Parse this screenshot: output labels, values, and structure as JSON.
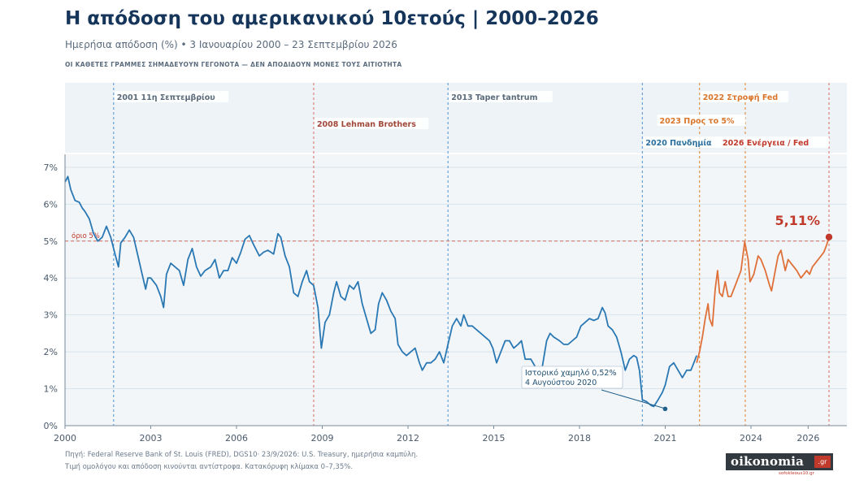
{
  "header": {
    "title": "Η απόδοση του αμερικανικού 10ετούς | 2000–2026",
    "subtitle": "Ημερήσια απόδοση (%) • 3 Ιανουαρίου 2000 – 23 Σεπτεμβρίου 2026",
    "note": "ΟΙ ΚΑΘΕΤΕΣ ΓΡΑΜΜΕΣ ΣΗΜΑΔΕΥΟΥΝ ΓΕΓΟΝΟΤΑ — ΔΕΝ ΑΠΟΔΙΔΟΥΝ ΜΟΝΕΣ ΤΟΥΣ ΑΙΤΙΟΤΗΤΑ"
  },
  "footer": {
    "source": "Πηγή: Federal Reserve Bank of St. Louis (FRED), DGS10· 23/9/2026: U.S. Treasury, ημερήσια καμπύλη.",
    "note": "Τιμή ομολόγου και απόδοση κινούνται αντίστροφα. Κατακόρυφη κλίμακα 0–7,35%."
  },
  "logo": {
    "name": "oikonomia",
    "tld": ".gr",
    "sub": "sofokleous10.gr"
  },
  "chart_data": {
    "type": "line",
    "xlim": [
      2000.0,
      2026.73
    ],
    "ylim": [
      0,
      7.35
    ],
    "x_ticks": [
      2000,
      2003,
      2006,
      2009,
      2012,
      2015,
      2018,
      2021,
      2024,
      2026
    ],
    "x_tick_labels": [
      "2000",
      "2003",
      "2006",
      "2009",
      "2012",
      "2015",
      "2018",
      "2021",
      "2024",
      "2026"
    ],
    "y_ticks": [
      0,
      1,
      2,
      3,
      4,
      5,
      6,
      7
    ],
    "y_tick_labels": [
      "0%",
      "1%",
      "2%",
      "3%",
      "4%",
      "5%",
      "6%",
      "7%"
    ],
    "grid": "horizontal",
    "threshold": {
      "value": 5,
      "label": "όριο 5%"
    },
    "colors": {
      "series_blue": "#2a78b3",
      "series_orange": "#e0703a",
      "accent_red": "#c0392b",
      "event_blue": "#5b9bd5",
      "event_red": "#d9776b",
      "event_orange": "#e08a3c"
    },
    "events": [
      {
        "x": 2001.7,
        "year": "2001",
        "label": "11η Σεπτεμβρίου",
        "row": 0,
        "color": "#5b9bd5",
        "text_color": "#5b6b7b"
      },
      {
        "x": 2008.7,
        "year": "2008",
        "label": "Lehman Brothers",
        "row": 2,
        "color": "#d9776b",
        "text_color": "#a0483a"
      },
      {
        "x": 2013.4,
        "year": "2013",
        "label": "Taper tantrum",
        "row": 0,
        "color": "#5b9bd5",
        "text_color": "#5b6b7b"
      },
      {
        "x": 2020.2,
        "year": "2020",
        "label": "Πανδημία",
        "row": 3,
        "color": "#5b9bd5",
        "text_color": "#2a6f9e"
      },
      {
        "x": 2022.2,
        "year": "2022",
        "label": "Στροφή Fed",
        "row": 0,
        "color": "#e08a3c",
        "text_color": "#d9762c"
      },
      {
        "x": 2023.8,
        "year": "2023",
        "label": "Προς το 5%",
        "row": 1,
        "color": "#e08a3c",
        "text_color": "#d9762c"
      },
      {
        "x": 2026.73,
        "year": "2026",
        "label": "Ενέργεια / Fed",
        "row": 3,
        "color": "#d9776b",
        "text_color": "#c0392b"
      }
    ],
    "low_annotation": {
      "x": 2020.6,
      "y": 0.52,
      "line1": "Ιστορικό χαμηλό 0,52%",
      "line2": "4 Αυγούστου 2020"
    },
    "last_value": {
      "x": 2026.73,
      "y": 5.11,
      "label": "5,11%"
    },
    "series": [
      {
        "name": "blue",
        "color": "#2a78b3",
        "points": [
          [
            2000.0,
            6.6
          ],
          [
            2000.1,
            6.75
          ],
          [
            2000.2,
            6.4
          ],
          [
            2000.35,
            6.1
          ],
          [
            2000.5,
            6.05
          ],
          [
            2000.6,
            5.9
          ],
          [
            2000.7,
            5.8
          ],
          [
            2000.85,
            5.6
          ],
          [
            2001.0,
            5.2
          ],
          [
            2001.15,
            5.0
          ],
          [
            2001.3,
            5.1
          ],
          [
            2001.45,
            5.4
          ],
          [
            2001.6,
            5.1
          ],
          [
            2001.75,
            4.65
          ],
          [
            2001.87,
            4.3
          ],
          [
            2001.95,
            4.95
          ],
          [
            2002.1,
            5.1
          ],
          [
            2002.25,
            5.3
          ],
          [
            2002.4,
            5.1
          ],
          [
            2002.55,
            4.6
          ],
          [
            2002.7,
            4.1
          ],
          [
            2002.82,
            3.7
          ],
          [
            2002.9,
            4.0
          ],
          [
            2003.0,
            4.0
          ],
          [
            2003.2,
            3.8
          ],
          [
            2003.35,
            3.5
          ],
          [
            2003.45,
            3.2
          ],
          [
            2003.55,
            4.1
          ],
          [
            2003.7,
            4.4
          ],
          [
            2003.85,
            4.3
          ],
          [
            2004.0,
            4.2
          ],
          [
            2004.15,
            3.8
          ],
          [
            2004.3,
            4.5
          ],
          [
            2004.45,
            4.8
          ],
          [
            2004.6,
            4.3
          ],
          [
            2004.75,
            4.05
          ],
          [
            2004.9,
            4.2
          ],
          [
            2005.1,
            4.3
          ],
          [
            2005.25,
            4.5
          ],
          [
            2005.4,
            4.0
          ],
          [
            2005.55,
            4.2
          ],
          [
            2005.7,
            4.2
          ],
          [
            2005.85,
            4.55
          ],
          [
            2006.0,
            4.4
          ],
          [
            2006.15,
            4.7
          ],
          [
            2006.3,
            5.05
          ],
          [
            2006.45,
            5.15
          ],
          [
            2006.6,
            4.9
          ],
          [
            2006.8,
            4.6
          ],
          [
            2006.95,
            4.7
          ],
          [
            2007.1,
            4.75
          ],
          [
            2007.3,
            4.65
          ],
          [
            2007.45,
            5.2
          ],
          [
            2007.55,
            5.1
          ],
          [
            2007.7,
            4.6
          ],
          [
            2007.85,
            4.3
          ],
          [
            2008.0,
            3.6
          ],
          [
            2008.15,
            3.5
          ],
          [
            2008.3,
            3.9
          ],
          [
            2008.45,
            4.2
          ],
          [
            2008.55,
            3.9
          ],
          [
            2008.7,
            3.8
          ],
          [
            2008.85,
            3.2
          ],
          [
            2008.97,
            2.1
          ],
          [
            2009.1,
            2.8
          ],
          [
            2009.25,
            3.0
          ],
          [
            2009.4,
            3.6
          ],
          [
            2009.5,
            3.9
          ],
          [
            2009.65,
            3.5
          ],
          [
            2009.8,
            3.4
          ],
          [
            2009.95,
            3.8
          ],
          [
            2010.1,
            3.7
          ],
          [
            2010.25,
            3.9
          ],
          [
            2010.4,
            3.3
          ],
          [
            2010.55,
            2.9
          ],
          [
            2010.7,
            2.5
          ],
          [
            2010.85,
            2.6
          ],
          [
            2010.97,
            3.3
          ],
          [
            2011.1,
            3.6
          ],
          [
            2011.25,
            3.4
          ],
          [
            2011.4,
            3.1
          ],
          [
            2011.55,
            2.9
          ],
          [
            2011.65,
            2.2
          ],
          [
            2011.8,
            2.0
          ],
          [
            2011.95,
            1.9
          ],
          [
            2012.1,
            2.0
          ],
          [
            2012.25,
            2.1
          ],
          [
            2012.4,
            1.7
          ],
          [
            2012.5,
            1.5
          ],
          [
            2012.65,
            1.7
          ],
          [
            2012.8,
            1.7
          ],
          [
            2012.95,
            1.8
          ],
          [
            2013.1,
            2.0
          ],
          [
            2013.25,
            1.7
          ],
          [
            2013.4,
            2.2
          ],
          [
            2013.55,
            2.7
          ],
          [
            2013.7,
            2.9
          ],
          [
            2013.85,
            2.7
          ],
          [
            2013.95,
            3.0
          ],
          [
            2014.1,
            2.7
          ],
          [
            2014.25,
            2.7
          ],
          [
            2014.4,
            2.6
          ],
          [
            2014.55,
            2.5
          ],
          [
            2014.7,
            2.4
          ],
          [
            2014.85,
            2.3
          ],
          [
            2014.97,
            2.1
          ],
          [
            2015.1,
            1.7
          ],
          [
            2015.25,
            2.0
          ],
          [
            2015.4,
            2.3
          ],
          [
            2015.55,
            2.3
          ],
          [
            2015.7,
            2.1
          ],
          [
            2015.85,
            2.2
          ],
          [
            2015.97,
            2.3
          ],
          [
            2016.1,
            1.8
          ],
          [
            2016.3,
            1.8
          ],
          [
            2016.45,
            1.6
          ],
          [
            2016.55,
            1.4
          ],
          [
            2016.7,
            1.6
          ],
          [
            2016.85,
            2.3
          ],
          [
            2016.97,
            2.5
          ],
          [
            2017.1,
            2.4
          ],
          [
            2017.3,
            2.3
          ],
          [
            2017.45,
            2.2
          ],
          [
            2017.6,
            2.2
          ],
          [
            2017.75,
            2.3
          ],
          [
            2017.9,
            2.4
          ],
          [
            2018.05,
            2.7
          ],
          [
            2018.2,
            2.8
          ],
          [
            2018.35,
            2.9
          ],
          [
            2018.5,
            2.85
          ],
          [
            2018.65,
            2.9
          ],
          [
            2018.8,
            3.2
          ],
          [
            2018.9,
            3.05
          ],
          [
            2019.0,
            2.7
          ],
          [
            2019.15,
            2.6
          ],
          [
            2019.3,
            2.4
          ],
          [
            2019.45,
            2.0
          ],
          [
            2019.6,
            1.5
          ],
          [
            2019.75,
            1.8
          ],
          [
            2019.9,
            1.9
          ],
          [
            2020.0,
            1.85
          ],
          [
            2020.1,
            1.5
          ],
          [
            2020.2,
            0.7
          ],
          [
            2020.35,
            0.65
          ],
          [
            2020.5,
            0.55
          ],
          [
            2020.6,
            0.52
          ],
          [
            2020.75,
            0.7
          ],
          [
            2020.9,
            0.9
          ],
          [
            2021.0,
            1.1
          ],
          [
            2021.15,
            1.6
          ],
          [
            2021.3,
            1.7
          ],
          [
            2021.45,
            1.5
          ],
          [
            2021.6,
            1.3
          ],
          [
            2021.75,
            1.5
          ],
          [
            2021.9,
            1.5
          ],
          [
            2022.0,
            1.7
          ],
          [
            2022.1,
            1.9
          ]
        ]
      },
      {
        "name": "orange",
        "color": "#e0703a",
        "points": [
          [
            2022.1,
            1.7
          ],
          [
            2022.2,
            2.0
          ],
          [
            2022.3,
            2.4
          ],
          [
            2022.4,
            2.9
          ],
          [
            2022.5,
            3.3
          ],
          [
            2022.55,
            2.9
          ],
          [
            2022.65,
            2.7
          ],
          [
            2022.75,
            3.7
          ],
          [
            2022.83,
            4.2
          ],
          [
            2022.9,
            3.6
          ],
          [
            2023.0,
            3.5
          ],
          [
            2023.1,
            3.9
          ],
          [
            2023.2,
            3.5
          ],
          [
            2023.3,
            3.5
          ],
          [
            2023.45,
            3.8
          ],
          [
            2023.55,
            4.0
          ],
          [
            2023.65,
            4.2
          ],
          [
            2023.78,
            4.98
          ],
          [
            2023.9,
            4.5
          ],
          [
            2023.97,
            3.9
          ],
          [
            2024.1,
            4.1
          ],
          [
            2024.25,
            4.6
          ],
          [
            2024.35,
            4.5
          ],
          [
            2024.5,
            4.2
          ],
          [
            2024.65,
            3.8
          ],
          [
            2024.72,
            3.65
          ],
          [
            2024.85,
            4.2
          ],
          [
            2024.95,
            4.6
          ],
          [
            2025.05,
            4.75
          ],
          [
            2025.2,
            4.2
          ],
          [
            2025.3,
            4.5
          ],
          [
            2025.45,
            4.35
          ],
          [
            2025.6,
            4.2
          ],
          [
            2025.75,
            4.0
          ],
          [
            2025.85,
            4.1
          ],
          [
            2025.95,
            4.2
          ],
          [
            2026.05,
            4.1
          ],
          [
            2026.15,
            4.3
          ],
          [
            2026.3,
            4.45
          ],
          [
            2026.45,
            4.6
          ],
          [
            2026.55,
            4.7
          ],
          [
            2026.65,
            4.9
          ],
          [
            2026.73,
            5.11
          ]
        ]
      }
    ]
  }
}
